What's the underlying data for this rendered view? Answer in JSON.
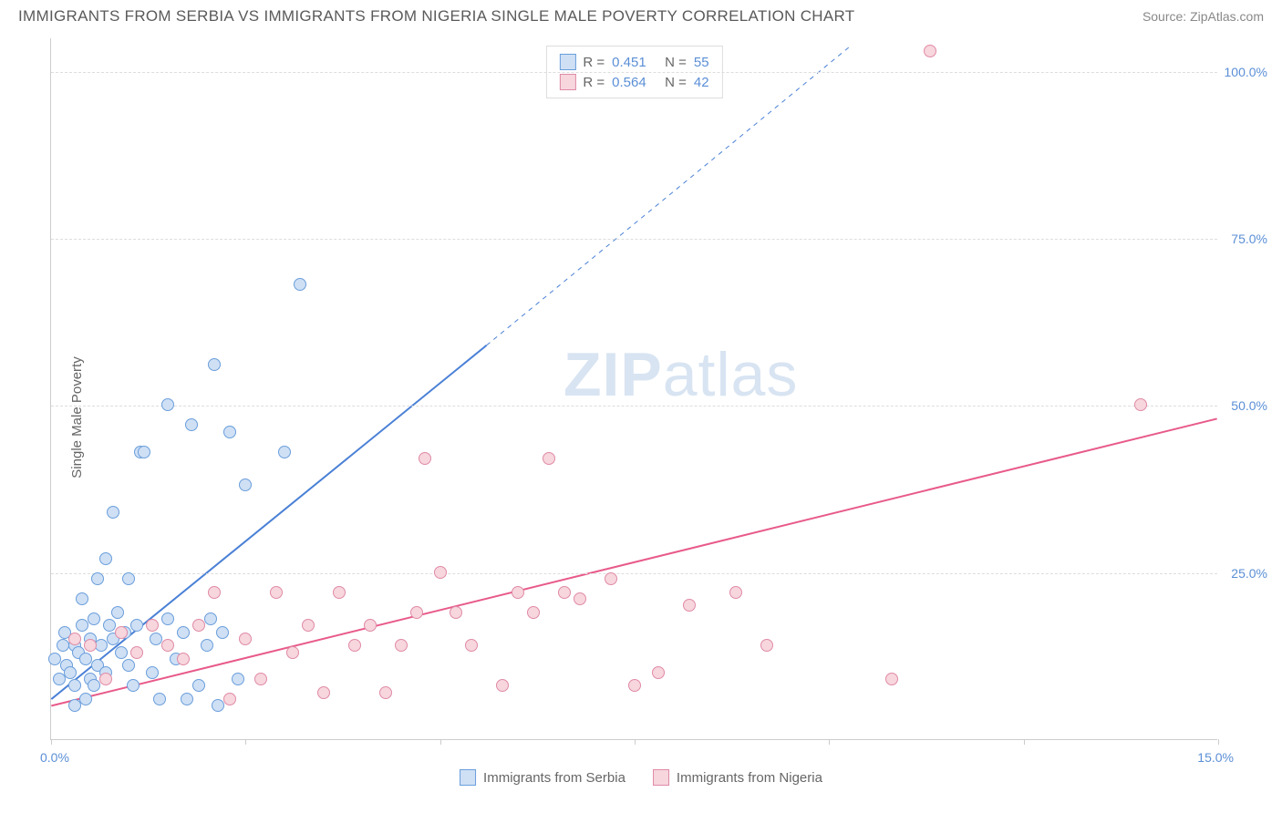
{
  "title": "IMMIGRANTS FROM SERBIA VS IMMIGRANTS FROM NIGERIA SINGLE MALE POVERTY CORRELATION CHART",
  "source": "Source: ZipAtlas.com",
  "watermark_a": "ZIP",
  "watermark_b": "atlas",
  "chart": {
    "type": "scatter",
    "ylabel": "Single Male Poverty",
    "xlim": [
      0,
      15
    ],
    "ylim": [
      0,
      105
    ],
    "xtick_labels": {
      "left": "0.0%",
      "right": "15.0%"
    },
    "xtick_positions": [
      0,
      2.5,
      5,
      7.5,
      10,
      12.5,
      15
    ],
    "ytick_positions": [
      25,
      50,
      75,
      100
    ],
    "ytick_labels": [
      "25.0%",
      "50.0%",
      "75.0%",
      "100.0%"
    ],
    "grid_color": "#dddddd",
    "background_color": "#ffffff",
    "axis_color": "#cccccc",
    "label_color": "#5b8fd6",
    "point_radius": 7,
    "series": [
      {
        "name": "Immigrants from Serbia",
        "color_fill": "#cfe0f5",
        "color_stroke": "#6a9edb",
        "r_value": "0.451",
        "n_value": "55",
        "regression": {
          "x1": 0,
          "y1": 6,
          "x2": 5.6,
          "y2": 59,
          "dash_x2": 10.3,
          "dash_y2": 104,
          "color": "#4a80d6",
          "width": 2
        },
        "points": [
          [
            0.05,
            12
          ],
          [
            0.1,
            9
          ],
          [
            0.15,
            14
          ],
          [
            0.2,
            11
          ],
          [
            0.18,
            16
          ],
          [
            0.25,
            10
          ],
          [
            0.3,
            14
          ],
          [
            0.3,
            8
          ],
          [
            0.35,
            13
          ],
          [
            0.4,
            17
          ],
          [
            0.4,
            21
          ],
          [
            0.45,
            12
          ],
          [
            0.5,
            15
          ],
          [
            0.5,
            9
          ],
          [
            0.55,
            18
          ],
          [
            0.6,
            11
          ],
          [
            0.6,
            24
          ],
          [
            0.65,
            14
          ],
          [
            0.7,
            27
          ],
          [
            0.7,
            10
          ],
          [
            0.75,
            17
          ],
          [
            0.8,
            15
          ],
          [
            0.85,
            19
          ],
          [
            0.9,
            13
          ],
          [
            0.95,
            16
          ],
          [
            1.0,
            24
          ],
          [
            1.0,
            11
          ],
          [
            1.05,
            8
          ],
          [
            1.1,
            17
          ],
          [
            1.15,
            43
          ],
          [
            1.2,
            43
          ],
          [
            1.3,
            10
          ],
          [
            1.35,
            15
          ],
          [
            1.4,
            6
          ],
          [
            1.5,
            50
          ],
          [
            1.5,
            18
          ],
          [
            1.6,
            12
          ],
          [
            1.7,
            16
          ],
          [
            1.75,
            6
          ],
          [
            1.8,
            47
          ],
          [
            1.9,
            8
          ],
          [
            2.0,
            14
          ],
          [
            2.05,
            18
          ],
          [
            2.1,
            56
          ],
          [
            2.15,
            5
          ],
          [
            2.2,
            16
          ],
          [
            2.3,
            46
          ],
          [
            2.4,
            9
          ],
          [
            2.5,
            38
          ],
          [
            3.0,
            43
          ],
          [
            3.2,
            68
          ],
          [
            0.8,
            34
          ],
          [
            0.3,
            5
          ],
          [
            0.45,
            6
          ],
          [
            0.55,
            8
          ]
        ]
      },
      {
        "name": "Immigrants from Nigeria",
        "color_fill": "#f7d6de",
        "color_stroke": "#e08aa5",
        "r_value": "0.564",
        "n_value": "42",
        "regression": {
          "x1": 0,
          "y1": 5,
          "x2": 15,
          "y2": 48,
          "color": "#e85a8a",
          "width": 2
        },
        "points": [
          [
            0.3,
            15
          ],
          [
            0.5,
            14
          ],
          [
            0.7,
            9
          ],
          [
            0.9,
            16
          ],
          [
            1.1,
            13
          ],
          [
            1.3,
            17
          ],
          [
            1.5,
            14
          ],
          [
            1.7,
            12
          ],
          [
            1.9,
            17
          ],
          [
            2.1,
            22
          ],
          [
            2.3,
            6
          ],
          [
            2.5,
            15
          ],
          [
            2.7,
            9
          ],
          [
            2.9,
            22
          ],
          [
            3.1,
            13
          ],
          [
            3.3,
            17
          ],
          [
            3.5,
            7
          ],
          [
            3.7,
            22
          ],
          [
            3.9,
            14
          ],
          [
            4.1,
            17
          ],
          [
            4.3,
            7
          ],
          [
            4.5,
            14
          ],
          [
            4.7,
            19
          ],
          [
            4.8,
            42
          ],
          [
            5.0,
            25
          ],
          [
            5.2,
            19
          ],
          [
            5.4,
            14
          ],
          [
            5.8,
            8
          ],
          [
            6.0,
            22
          ],
          [
            6.2,
            19
          ],
          [
            6.4,
            42
          ],
          [
            6.6,
            22
          ],
          [
            6.8,
            21
          ],
          [
            7.2,
            24
          ],
          [
            7.5,
            8
          ],
          [
            7.8,
            10
          ],
          [
            8.2,
            20
          ],
          [
            8.8,
            22
          ],
          [
            9.2,
            14
          ],
          [
            10.8,
            9
          ],
          [
            11.3,
            103
          ],
          [
            14.0,
            50
          ]
        ]
      }
    ],
    "legend_top": {
      "r_label": "R  =",
      "n_label": "N  ="
    }
  }
}
